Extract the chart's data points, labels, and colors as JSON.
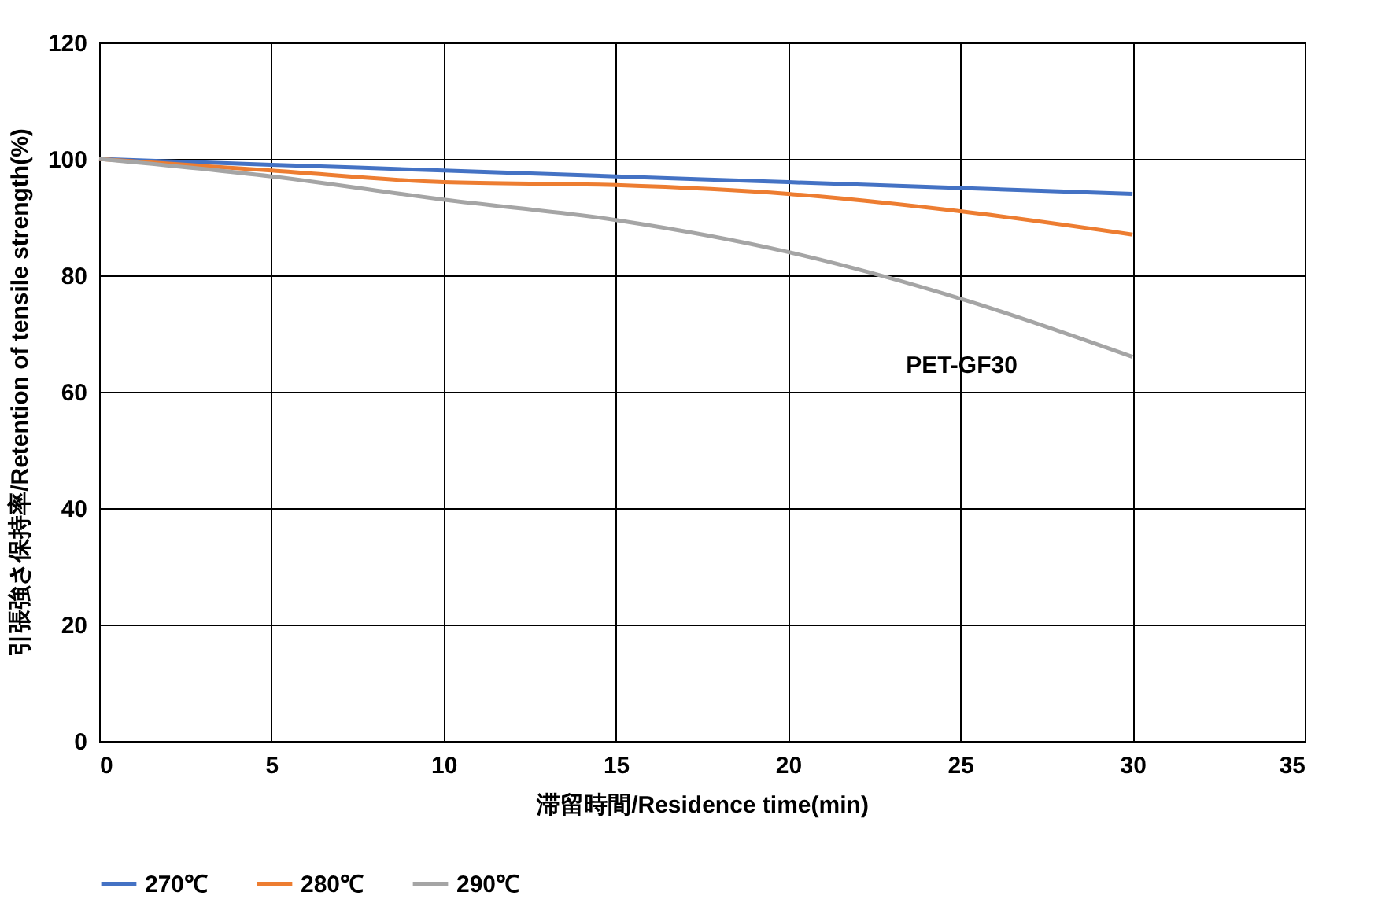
{
  "chart_data": {
    "type": "line",
    "xlabel": "滞留時間/Residence time(min)",
    "ylabel": "引張強さ保持率/Retention of tensile strength(%)",
    "x": [
      0,
      5,
      10,
      15,
      20,
      25,
      30
    ],
    "series": [
      {
        "name": "270℃",
        "color": "#4472c4",
        "values": [
          100,
          99,
          98,
          97,
          96,
          95,
          94
        ]
      },
      {
        "name": "280℃",
        "color": "#ed7d31",
        "values": [
          100,
          98,
          96,
          95.5,
          94,
          91,
          87
        ]
      },
      {
        "name": "290℃",
        "color": "#a5a5a5",
        "values": [
          100,
          97,
          93,
          89.5,
          84,
          76,
          66
        ]
      }
    ],
    "xlim": [
      0,
      35
    ],
    "xticks": [
      0,
      5,
      10,
      15,
      20,
      25,
      30,
      35
    ],
    "ylim": [
      0,
      120
    ],
    "yticks": [
      0,
      20,
      40,
      60,
      80,
      100,
      120
    ],
    "grid": true,
    "legend": "bottom",
    "marker": "none",
    "line_style": "solid",
    "annotations": [
      "PET-GF30"
    ]
  }
}
